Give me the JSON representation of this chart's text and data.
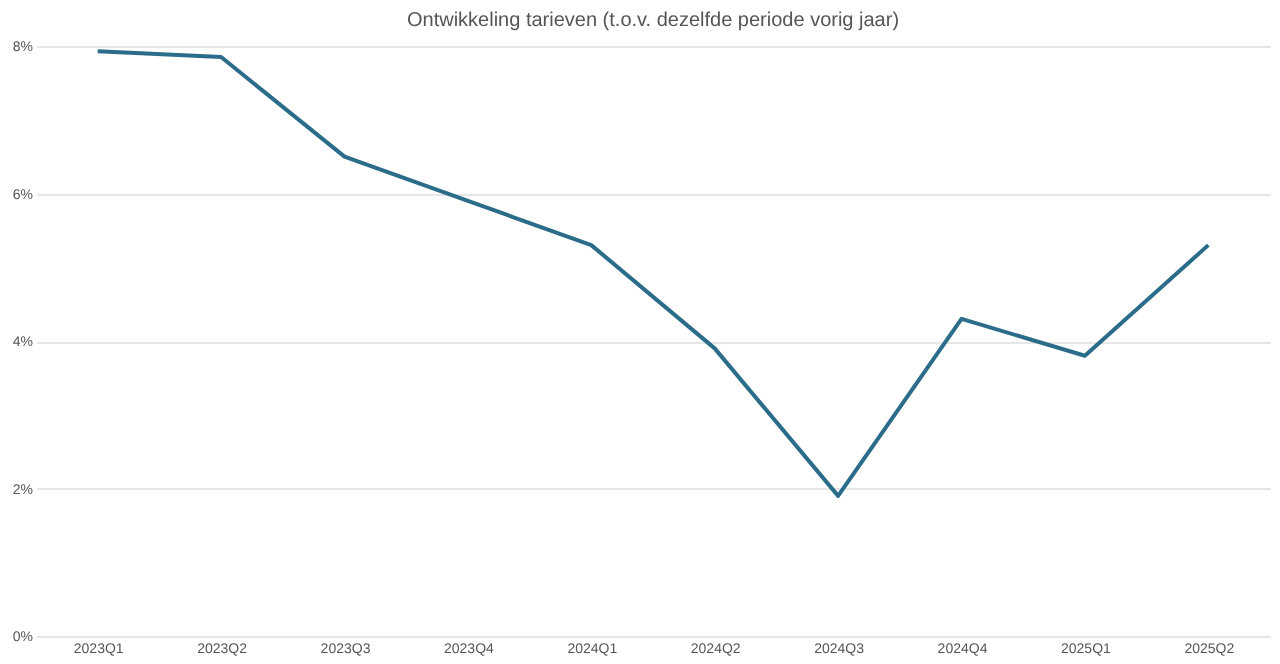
{
  "chart_data": {
    "type": "line",
    "title": "Ontwikkeling tarieven (t.o.v. dezelfde periode vorig jaar)",
    "categories": [
      "2023Q1",
      "2023Q2",
      "2023Q3",
      "2023Q4",
      "2024Q1",
      "2024Q2",
      "2024Q3",
      "2024Q4",
      "2025Q1",
      "2025Q2"
    ],
    "series": [
      {
        "color": "#2b6c8a",
        "values": [
          7.93,
          7.85,
          6.5,
          5.9,
          5.3,
          3.9,
          1.9,
          4.3,
          3.8,
          5.3
        ]
      }
    ],
    "ylim": [
      0,
      8
    ],
    "yticks": [
      {
        "value": 0,
        "label": "0%"
      },
      {
        "value": 2,
        "label": "2%"
      },
      {
        "value": 4,
        "label": "4%"
      },
      {
        "value": 6,
        "label": "6%"
      },
      {
        "value": 8,
        "label": "8%"
      }
    ],
    "grid": "y",
    "legend": false,
    "marker": "none",
    "line_style": "solid"
  }
}
